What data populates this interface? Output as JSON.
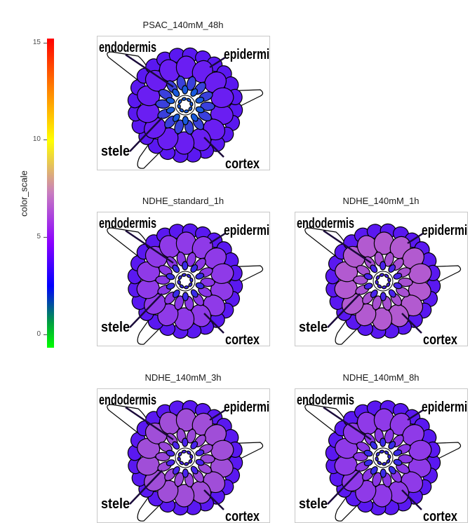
{
  "legend": {
    "title": "color_scale",
    "ticks": [
      {
        "value": 0,
        "label": "0"
      },
      {
        "value": 5,
        "label": "5"
      },
      {
        "value": 10,
        "label": "10"
      },
      {
        "value": 15,
        "label": "15"
      }
    ],
    "range": [
      -0.7,
      15.2
    ]
  },
  "tissue_labels": {
    "endodermis": "endodermis",
    "epidermis": "epidermis",
    "stele": "stele",
    "cortex": "cortex"
  },
  "panels": [
    {
      "title": "PSAC_140mM_48h",
      "colors": {
        "epidermis": "#5a18f0",
        "cortex": "#6a1ef2",
        "endodermis": "#3a40dc",
        "stele": "#1a5adc"
      }
    },
    {
      "title": "NDHE_standard_1h",
      "colors": {
        "epidermis": "#5a18f0",
        "cortex": "#8f3ae8",
        "endodermis": "#8a36e6",
        "stele": "#3a2ce8"
      }
    },
    {
      "title": "NDHE_140mM_1h",
      "colors": {
        "epidermis": "#5a18f0",
        "cortex": "#b25ad0",
        "endodermis": "#a850d2",
        "stele": "#4a24ec"
      }
    },
    {
      "title": "NDHE_140mM_3h",
      "colors": {
        "epidermis": "#5a18f0",
        "cortex": "#a04ed8",
        "endodermis": "#9a48da",
        "stele": "#4a24ec"
      }
    },
    {
      "title": "NDHE_140mM_8h",
      "colors": {
        "epidermis": "#5a18f0",
        "cortex": "#8f3ae8",
        "endodermis": "#8a36e6",
        "stele": "#3a2ce8"
      }
    }
  ]
}
